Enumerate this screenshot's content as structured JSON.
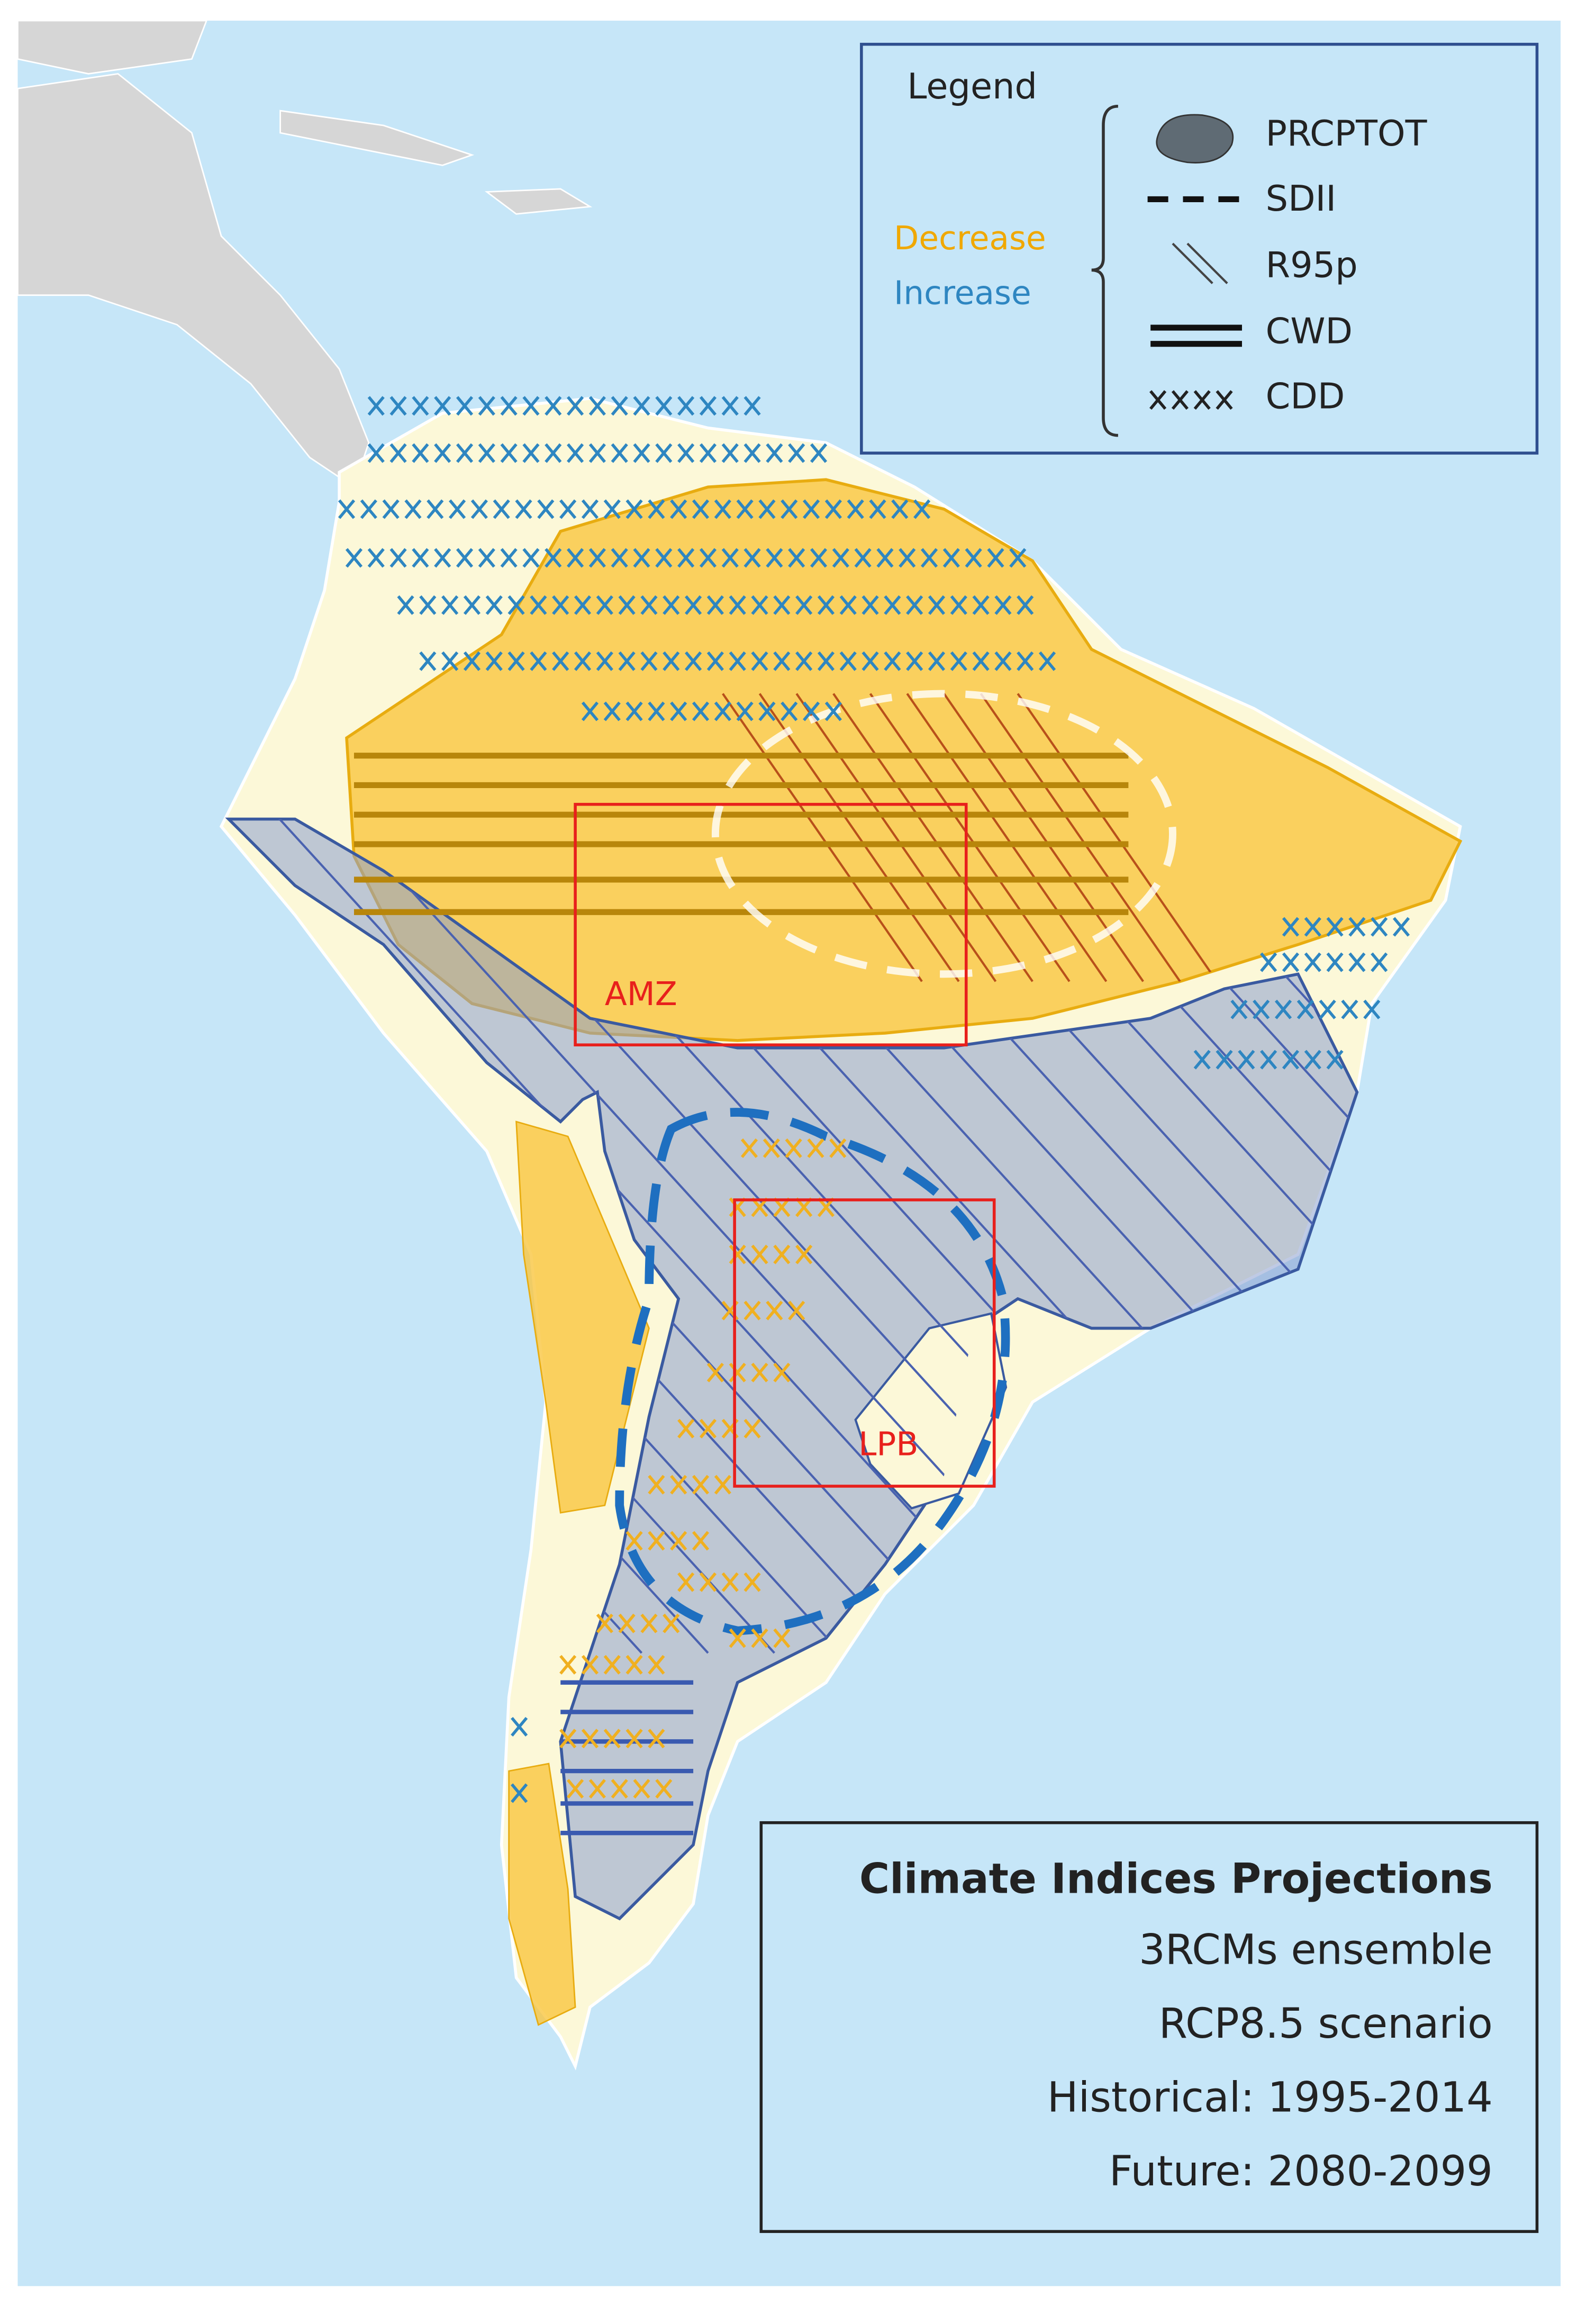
{
  "legend": {
    "title": "Legend",
    "decrease": "Decrease",
    "increase": "Increase",
    "items": [
      "PRCPTOT",
      "SDII",
      "R95p",
      "CWD",
      "CDD"
    ]
  },
  "regions": [
    "AMZ",
    "LPB"
  ],
  "info": {
    "title": "Climate Indices Projections",
    "lines": [
      "3RCMs ensemble",
      "RCP8.5 scenario",
      "Historical: 1995-2014",
      "Future: 2080-2099"
    ]
  }
}
